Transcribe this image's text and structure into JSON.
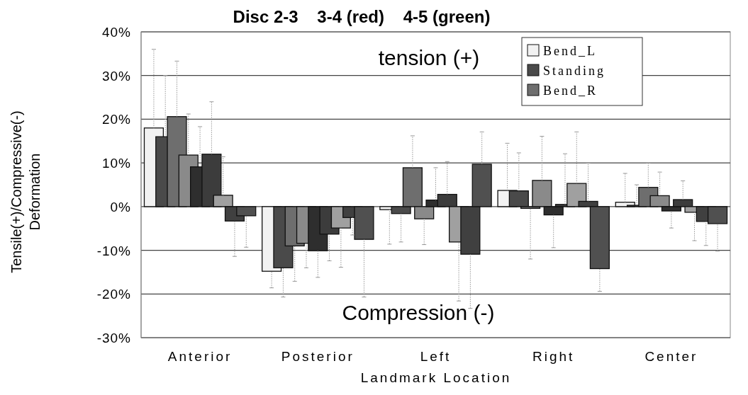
{
  "chart_data": {
    "type": "bar",
    "title": "Disc 2-3    3-4 (red)    4-5 (green)",
    "xlabel": "Landmark Location",
    "ylabel": "Tensile(+)/Compressive(-)\nDeformation",
    "annotations": [
      "tension (+)",
      "Compression (-)"
    ],
    "categories": [
      "Anterior",
      "Posterior",
      "Left",
      "Right",
      "Center"
    ],
    "ylim": [
      -30,
      40
    ],
    "yticks": [
      {
        "value": -30,
        "label": "-30%"
      },
      {
        "value": -20,
        "label": "-20%"
      },
      {
        "value": -10,
        "label": "-10%"
      },
      {
        "value": 0,
        "label": "0%"
      },
      {
        "value": 10,
        "label": "10%"
      },
      {
        "value": 20,
        "label": "20%"
      },
      {
        "value": 30,
        "label": "30%"
      },
      {
        "value": 40,
        "label": "40%"
      }
    ],
    "grid": "y",
    "legend": "top right",
    "series": [
      {
        "name": "Bend_L",
        "color": "#f2f2f2",
        "values": [
          18,
          -14.8,
          -0.7,
          3.7,
          1.0
        ],
        "errors": [
          [
            18,
            36
          ],
          [
            -18.6,
            -14.8
          ],
          [
            -8.6,
            -0.7
          ],
          [
            3.7,
            14.5
          ],
          [
            1.0,
            7.6
          ]
        ]
      },
      {
        "name": "Standing",
        "color": "#4a4a4a",
        "values": [
          16,
          -14,
          -1.6,
          3.6,
          0.3
        ],
        "errors": [
          [
            16,
            30
          ],
          [
            -20.7,
            -14
          ],
          [
            -8.1,
            -1.6
          ],
          [
            3.6,
            12.3
          ],
          [
            0.3,
            5.0
          ]
        ]
      },
      {
        "name": "Bend_R",
        "color": "#6e6e6e",
        "values": [
          20.6,
          -9,
          8.9,
          -0.4,
          4.4
        ],
        "errors": [
          [
            20.6,
            33.3
          ],
          [
            -17.1,
            -9
          ],
          [
            8.9,
            16.2
          ],
          [
            -12,
            -0.4
          ],
          [
            4.4,
            10
          ]
        ]
      },
      {
        "color": "#8a8a8a",
        "values": [
          11.8,
          -8.4,
          -2.8,
          6,
          2.5
        ],
        "errors": [
          [
            11.8,
            21.2
          ],
          [
            -14,
            -8.4
          ],
          [
            -8.7,
            -2.8
          ],
          [
            6,
            16.1
          ],
          [
            2.5,
            7.9
          ]
        ]
      },
      {
        "color": "#2e2e2e",
        "values": [
          9.1,
          -10.1,
          1.5,
          -1.9,
          -1
        ],
        "errors": [
          [
            9.1,
            18.3
          ],
          [
            -16.2,
            -10.1
          ],
          [
            1.5,
            8.9
          ],
          [
            -9.4,
            -1.9
          ],
          [
            -4.9,
            -1
          ]
        ]
      },
      {
        "color": "#3c3c3c",
        "values": [
          12,
          -6.3,
          2.8,
          0.5,
          1.6
        ],
        "errors": [
          [
            12,
            24
          ],
          [
            -12.4,
            -6.3
          ],
          [
            2.8,
            10.3
          ],
          [
            0.5,
            12.1
          ],
          [
            1.6,
            5.9
          ]
        ]
      },
      {
        "color": "#a0a0a0",
        "values": [
          2.6,
          -4.9,
          -8.1,
          5.3,
          -1.3
        ],
        "errors": [
          [
            2.6,
            11.4
          ],
          [
            -13.9,
            -4.9
          ],
          [
            -21.6,
            -8.1
          ],
          [
            5.3,
            17.1
          ],
          [
            -7.8,
            -1.3
          ]
        ]
      },
      {
        "color": "#404040",
        "values": [
          -3.3,
          -2.5,
          -10.9,
          1.2,
          -3.4
        ],
        "errors": [
          [
            -11.4,
            -3.3
          ],
          [
            -6.5,
            -2.5
          ],
          [
            -23.3,
            -10.9
          ],
          [
            1.2,
            10
          ],
          [
            -8.9,
            -3.4
          ]
        ]
      },
      {
        "color": "#505050",
        "values": [
          -2.1,
          -7.5,
          9.7,
          -14.2,
          -3.9
        ],
        "errors": [
          [
            -9.3,
            -2.1
          ],
          [
            -20.7,
            -7.5
          ],
          [
            9.7,
            17.1
          ],
          [
            -19.4,
            -14.2
          ],
          [
            -10.2,
            -3.9
          ]
        ]
      }
    ]
  }
}
